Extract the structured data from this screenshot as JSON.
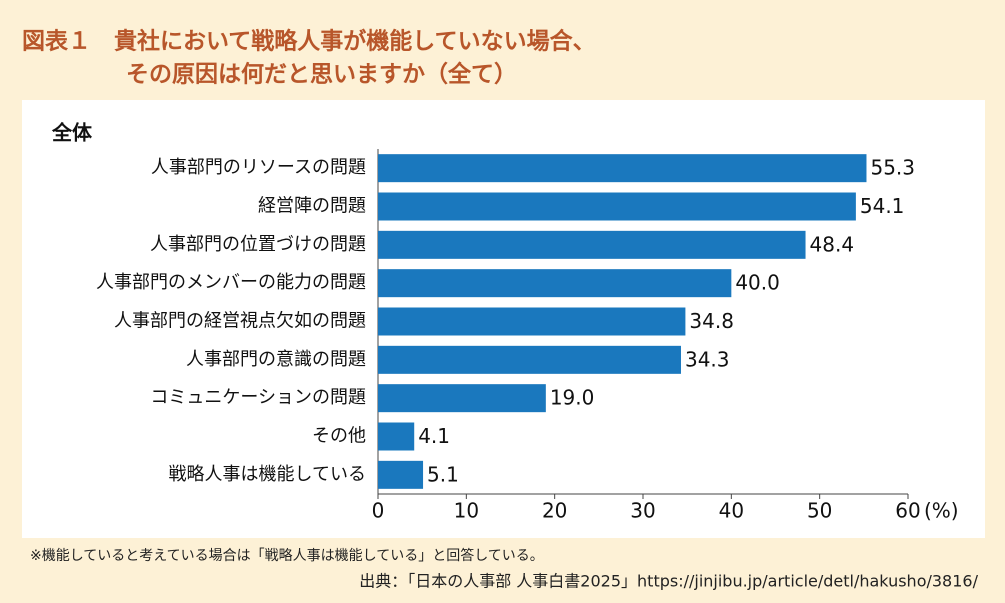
{
  "chart_data": {
    "type": "bar",
    "orientation": "horizontal",
    "title": [
      "図表１　貴社において戦略人事が機能していない場合、",
      "その原因は何だと思いますか（全て）"
    ],
    "subtitle": "全体",
    "categories": [
      "人事部門のリソースの問題",
      "経営陣の問題",
      "人事部門の位置づけの問題",
      "人事部門のメンバーの能力の問題",
      "人事部門の経営視点欠如の問題",
      "人事部門の意識の問題",
      "コミュニケーションの問題",
      "その他",
      "戦略人事は機能している"
    ],
    "values": [
      55.3,
      54.1,
      48.4,
      40.0,
      34.8,
      34.3,
      19.0,
      4.1,
      5.1
    ],
    "value_labels": [
      "55.3",
      "54.1",
      "48.4",
      "40.0",
      "34.8",
      "34.3",
      "19.0",
      "4.1",
      "5.1"
    ],
    "color": "#1a78be",
    "xlim": [
      0,
      60
    ],
    "xticks": [
      0,
      10,
      20,
      30,
      40,
      50,
      60
    ],
    "x_unit": "(%)",
    "grid": false,
    "note": "※機能していると考えている場合は「戦略人事は機能している」と回答している。",
    "source": "出典：「日本の人事部 人事白書2025」https://jinjibu.jp/article/detl/hakusho/3816/"
  }
}
